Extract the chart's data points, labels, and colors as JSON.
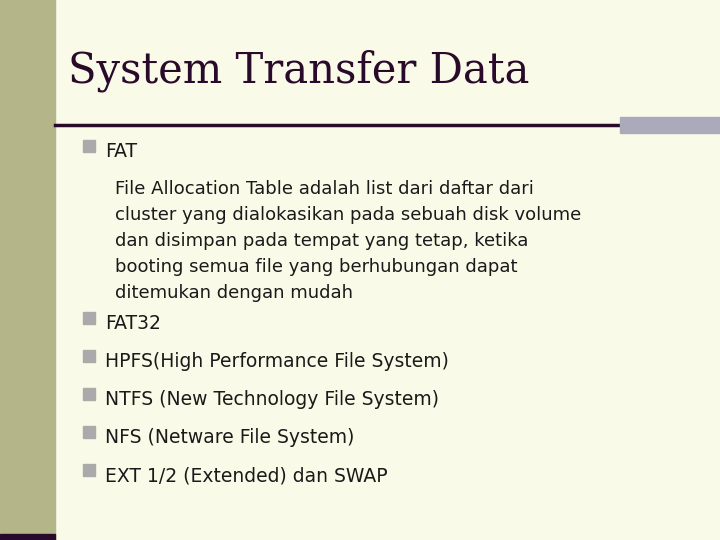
{
  "title": "System Transfer Data",
  "bg_color": "#FAFAE8",
  "left_bar_color": "#B5B58A",
  "title_color": "#2a0a2a",
  "bullet_color": "#AAAAAA",
  "text_color": "#1a1a1a",
  "header_line_color": "#2a0a2a",
  "header_bar_color": "#AAAABB",
  "title_fontsize": 30,
  "body_fontsize": 13.5,
  "sub_fontsize": 13.0,
  "bullet_items": [
    {
      "bullet": true,
      "text": "FAT"
    },
    {
      "bullet": false,
      "text": "File Allocation Table adalah list dari daftar dari\ncluster yang dialokasikan pada sebuah disk volume\ndan disimpan pada tempat yang tetap, ketika\nbooting semua file yang berhubungan dapat\nditemukan dengan mudah"
    },
    {
      "bullet": true,
      "text": "FAT32"
    },
    {
      "bullet": true,
      "text": "HPFS(High Performance File System)"
    },
    {
      "bullet": true,
      "text": "NTFS (New Technology File System)"
    },
    {
      "bullet": true,
      "text": "NFS (Netware File System)"
    },
    {
      "bullet": true,
      "text": "EXT 1/2 (Extended) dan SWAP"
    }
  ]
}
